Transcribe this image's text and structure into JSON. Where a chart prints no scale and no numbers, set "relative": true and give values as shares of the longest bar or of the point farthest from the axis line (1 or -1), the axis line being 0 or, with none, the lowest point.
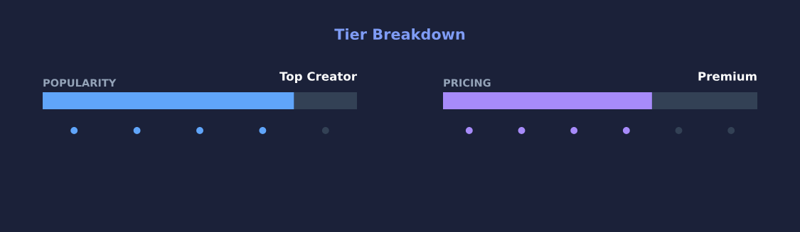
{
  "chart_data": [
    {
      "type": "bar",
      "title": "Tier Breakdown",
      "subtitle": "POPULARITY",
      "annotations": [
        "Top Creator"
      ],
      "orientation": "horizontal",
      "stacked": true,
      "relative": true,
      "categories": [
        null
      ],
      "series": [
        {
          "color": "#60a5fa",
          "values": [
            0.8
          ]
        },
        {
          "color": "#334155",
          "values": [
            0.2
          ]
        }
      ]
    },
    {
      "type": "other",
      "categories": [
        null,
        null,
        null,
        null,
        null
      ],
      "colors": [
        "#60a5fa",
        "#60a5fa",
        "#60a5fa",
        "#60a5fa",
        "#334155"
      ]
    },
    {
      "type": "bar",
      "subtitle": "PRICING",
      "annotations": [
        "Premium"
      ],
      "orientation": "horizontal",
      "stacked": true,
      "relative": true,
      "categories": [
        null
      ],
      "series": [
        {
          "color": "#a78bfa",
          "values": [
            0.665
          ]
        },
        {
          "color": "#334155",
          "values": [
            0.335
          ]
        }
      ]
    },
    {
      "type": "other",
      "categories": [
        null,
        null,
        null,
        null,
        null,
        null
      ],
      "colors": [
        "#a78bfa",
        "#a78bfa",
        "#a78bfa",
        "#a78bfa",
        "#334155",
        "#334155"
      ]
    }
  ]
}
